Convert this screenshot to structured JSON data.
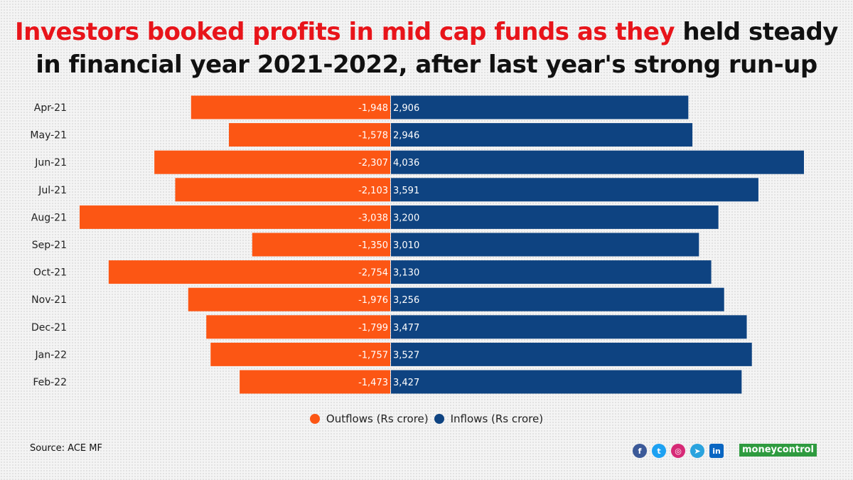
{
  "title": {
    "part1": "Investors booked profits in mid cap funds as they",
    "part2": " held steady",
    "line2": "in financial year 2021-2022, after last year's strong run-up"
  },
  "colors": {
    "outflow": "#fc5614",
    "inflow": "#0e4381",
    "title_highlight": "#e8141a"
  },
  "chart_data": {
    "type": "bar",
    "orientation": "horizontal-diverging",
    "categories": [
      "Apr-21",
      "May-21",
      "Jun-21",
      "Jul-21",
      "Aug-21",
      "Sep-21",
      "Oct-21",
      "Nov-21",
      "Dec-21",
      "Jan-22",
      "Feb-22"
    ],
    "series": [
      {
        "name": "Outflows (Rs crore)",
        "values": [
          -1948,
          -1578,
          -2307,
          -2103,
          -3038,
          -1350,
          -2754,
          -1976,
          -1799,
          -1757,
          -1473
        ],
        "labels": [
          "-1,948",
          "-1,578",
          "-2,307",
          "-2,103",
          "-3,038",
          "-1,350",
          "-2,754",
          "-1,976",
          "-1,799",
          "-1,757",
          "-1,473"
        ]
      },
      {
        "name": "Inflows (Rs crore)",
        "values": [
          2906,
          2946,
          4036,
          3591,
          3200,
          3010,
          3130,
          3256,
          3477,
          3527,
          3427
        ],
        "labels": [
          "2,906",
          "2,946",
          "4,036",
          "3,591",
          "3,200",
          "3,010",
          "3,130",
          "3,256",
          "3,477",
          "3,527",
          "3,427"
        ]
      }
    ],
    "xlim": [
      -3038,
      4036
    ],
    "legend_position": "bottom-center",
    "grid": false
  },
  "legend": {
    "outflows": "Outflows (Rs crore)",
    "inflows": "Inflows (Rs crore)"
  },
  "source": "Source: ACE MF",
  "brand": "moneycontrol",
  "social_icons": [
    "facebook-icon",
    "twitter-icon",
    "instagram-icon",
    "telegram-icon",
    "linkedin-icon"
  ]
}
